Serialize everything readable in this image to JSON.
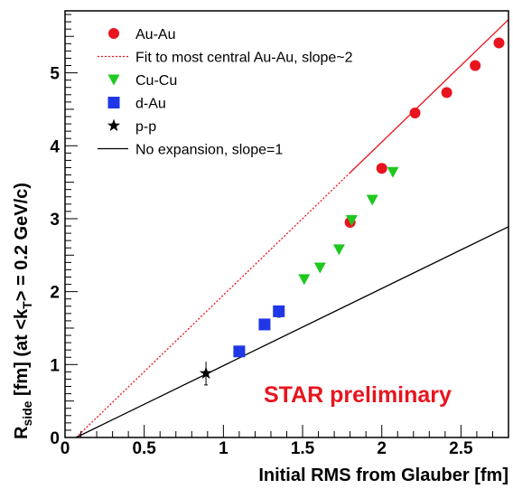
{
  "chart_data": {
    "type": "scatter",
    "xlabel": "Initial RMS from Glauber [fm]",
    "ylabel": {
      "prefix": "R",
      "prefix_sub": "side",
      "middle": " [fm] (at <k",
      "middle_sub": "T",
      "suffix": "> = 0.2 GeV/c)"
    },
    "xlim": [
      0,
      2.8
    ],
    "ylim": [
      0,
      5.85
    ],
    "x_ticks": [
      {
        "value": 0,
        "label": "0"
      },
      {
        "value": 0.5,
        "label": "0.5"
      },
      {
        "value": 1,
        "label": "1"
      },
      {
        "value": 1.5,
        "label": "1.5"
      },
      {
        "value": 2,
        "label": "2"
      },
      {
        "value": 2.5,
        "label": "2.5"
      }
    ],
    "y_ticks": [
      {
        "value": 0,
        "label": "0"
      },
      {
        "value": 1,
        "label": "1"
      },
      {
        "value": 2,
        "label": "2"
      },
      {
        "value": 3,
        "label": "3"
      },
      {
        "value": 4,
        "label": "4"
      },
      {
        "value": 5,
        "label": "5"
      }
    ],
    "grid": false,
    "legend_position": "top-left",
    "annotation": {
      "text": "STAR preliminary",
      "color": "#e8141e"
    },
    "series": [
      {
        "name": "Au-Au",
        "marker": "circle",
        "color": "#e8141e",
        "x": [
          1.8,
          2.0,
          2.21,
          2.41,
          2.59,
          2.74
        ],
        "y": [
          2.95,
          3.69,
          4.45,
          4.73,
          5.1,
          5.41
        ]
      },
      {
        "name": "Cu-Cu",
        "marker": "triangle-down",
        "color": "#1fc81f",
        "x": [
          1.51,
          1.61,
          1.73,
          1.81,
          1.94,
          2.07
        ],
        "y": [
          2.17,
          2.33,
          2.58,
          2.98,
          3.26,
          3.64
        ]
      },
      {
        "name": "d-Au",
        "marker": "square",
        "color": "#1f37e6",
        "x": [
          1.1,
          1.26,
          1.35
        ],
        "y": [
          1.18,
          1.55,
          1.73
        ],
        "err": [
          0.07,
          0.07,
          0.08
        ]
      },
      {
        "name": "p-p",
        "marker": "star",
        "color": "#000000",
        "x": [
          0.89
        ],
        "y": [
          0.88
        ],
        "err": [
          0.16
        ]
      }
    ],
    "lines": [
      {
        "name": "Fit to most central Au-Au, slope~2",
        "color": "#e8141e",
        "x": [
          0.07,
          2.8
        ],
        "y": [
          0.0,
          5.73
        ],
        "solid_from_x": 1.8
      },
      {
        "name": "No expansion, slope=1",
        "color": "#000000",
        "x": [
          0.07,
          2.8
        ],
        "y": [
          0.0,
          2.89
        ]
      }
    ]
  }
}
